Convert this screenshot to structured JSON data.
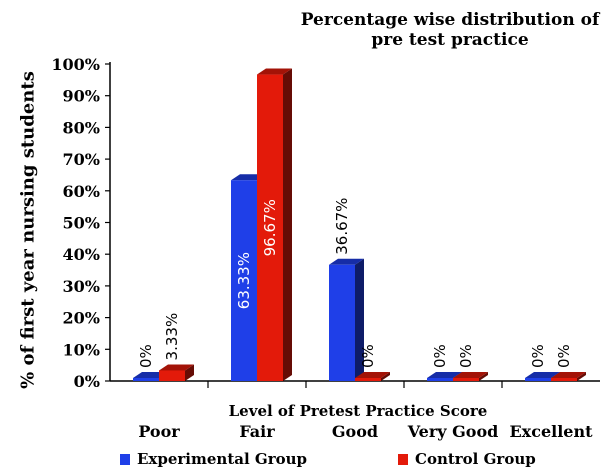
{
  "chart_data": {
    "type": "bar",
    "title": "Percentage wise distribution of pre test practice",
    "xlabel": "Level of Pretest Practice Score",
    "ylabel": "% of first year nursing students",
    "categories": [
      "Poor",
      "Fair",
      "Good",
      "Very Good",
      "Excellent"
    ],
    "series": [
      {
        "name": "Experimental Group",
        "color": "#1f3fe8",
        "values": [
          0,
          63.33,
          36.67,
          0,
          0
        ],
        "labels": [
          "0%",
          "63.33%",
          "36.67%",
          "0%",
          "0%"
        ]
      },
      {
        "name": "Control Group",
        "color": "#e31a0a",
        "values": [
          3.33,
          96.67,
          0,
          0,
          0
        ],
        "labels": [
          "3.33%",
          "96.67%",
          "0%",
          "0%",
          "0%"
        ]
      }
    ],
    "yticks": [
      "0%",
      "10%",
      "20%",
      "30%",
      "40%",
      "50%",
      "60%",
      "70%",
      "80%",
      "90%",
      "100%"
    ],
    "ylim": [
      0,
      100
    ],
    "grid": false,
    "legend": "bottom",
    "style": "3d"
  }
}
